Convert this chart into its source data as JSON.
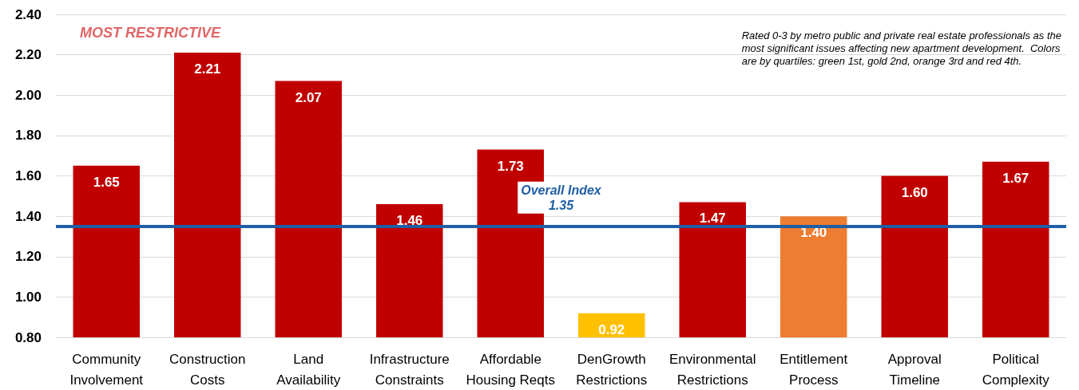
{
  "chart_data": {
    "type": "bar",
    "categories": [
      "Community\nInvolvement",
      "Construction\nCosts",
      "Land\nAvailability",
      "Infrastructure\nConstraints",
      "Affordable\nHousing Reqts",
      "DenGrowth\nRestrictions",
      "Environmental\nRestrictions",
      "Entitlement\nProcess",
      "Approval\nTimeline",
      "Political\nComplexity"
    ],
    "values": [
      1.65,
      2.21,
      2.07,
      1.46,
      1.73,
      0.92,
      1.47,
      1.4,
      1.6,
      1.67
    ],
    "value_labels": [
      "1.65",
      "2.21",
      "2.07",
      "1.46",
      "1.73",
      "0.92",
      "1.47",
      "1.40",
      "1.60",
      "1.67"
    ],
    "colors": [
      "#c00000",
      "#c00000",
      "#c00000",
      "#c00000",
      "#c00000",
      "#ffc000",
      "#c00000",
      "#ed7d31",
      "#c00000",
      "#c00000"
    ],
    "ylim": [
      0.8,
      2.4
    ],
    "yticks": [
      {
        "value": 0.8,
        "label": "0.80"
      },
      {
        "value": 1.0,
        "label": "1.00"
      },
      {
        "value": 1.2,
        "label": "1.20"
      },
      {
        "value": 1.4,
        "label": "1.40"
      },
      {
        "value": 1.6,
        "label": "1.60"
      },
      {
        "value": 1.8,
        "label": "1.80"
      },
      {
        "value": 2.0,
        "label": "2.00"
      },
      {
        "value": 2.2,
        "label": "2.20"
      },
      {
        "value": 2.4,
        "label": "2.40"
      }
    ],
    "grid": "y",
    "ref_lines": [
      {
        "axis": "y",
        "value": 1.35,
        "label": "Overall Index\n1.35",
        "color": "#1f5fa6"
      }
    ],
    "annotations": [
      "MOST RESTRICTIVE",
      "Rated 0-3 by metro public and private real estate professionals as the\nmost significant issues affecting new apartment development.  Colors\nare by quartiles: green 1st, gold 2nd, orange 3rd and red 4th."
    ]
  }
}
